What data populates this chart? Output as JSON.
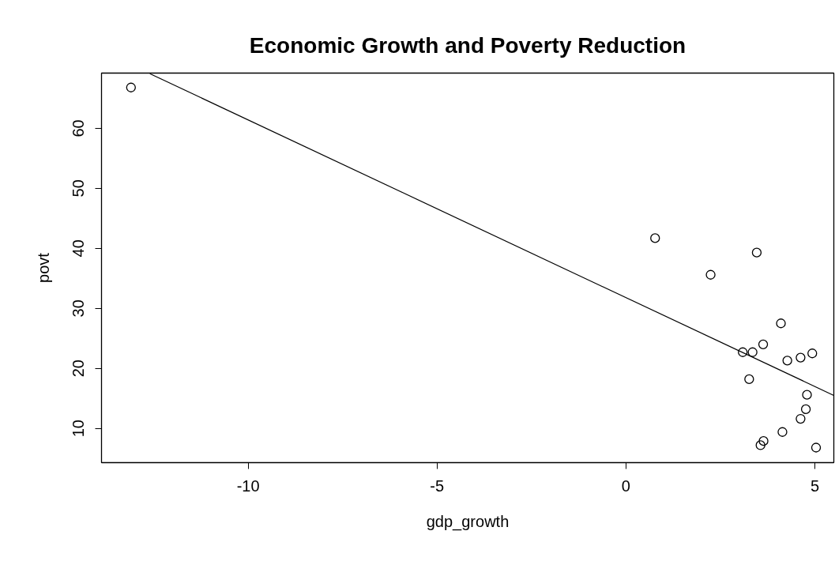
{
  "chart_data": {
    "type": "scatter",
    "title": "Economic Growth and Poverty Reduction",
    "xlabel": "gdp_growth",
    "ylabel": "povt",
    "xlim": [
      -13.88,
      5.5
    ],
    "ylim": [
      4.3,
      69.2
    ],
    "xticks": [
      -10,
      -5,
      0,
      5
    ],
    "yticks": [
      10,
      20,
      30,
      40,
      50,
      60
    ],
    "series": [
      {
        "marker": "circle",
        "color": "#000000",
        "x": [
          -13.1,
          0.77,
          3.46,
          2.24,
          4.1,
          3.63,
          3.09,
          3.35,
          4.27,
          4.62,
          4.93,
          3.26,
          4.79,
          4.76,
          4.62,
          4.14,
          3.64,
          3.56,
          5.03
        ],
        "values": [
          66.8,
          41.7,
          39.3,
          35.6,
          27.5,
          24.0,
          22.7,
          22.7,
          21.3,
          21.8,
          22.5,
          18.2,
          15.6,
          13.2,
          11.6,
          9.4,
          7.9,
          7.2,
          6.8
        ]
      },
      {
        "type": "line",
        "marker": "none",
        "color": "#000000",
        "x": [
          -12.6,
          5.5
        ],
        "values": [
          69.1,
          15.5
        ]
      }
    ]
  }
}
